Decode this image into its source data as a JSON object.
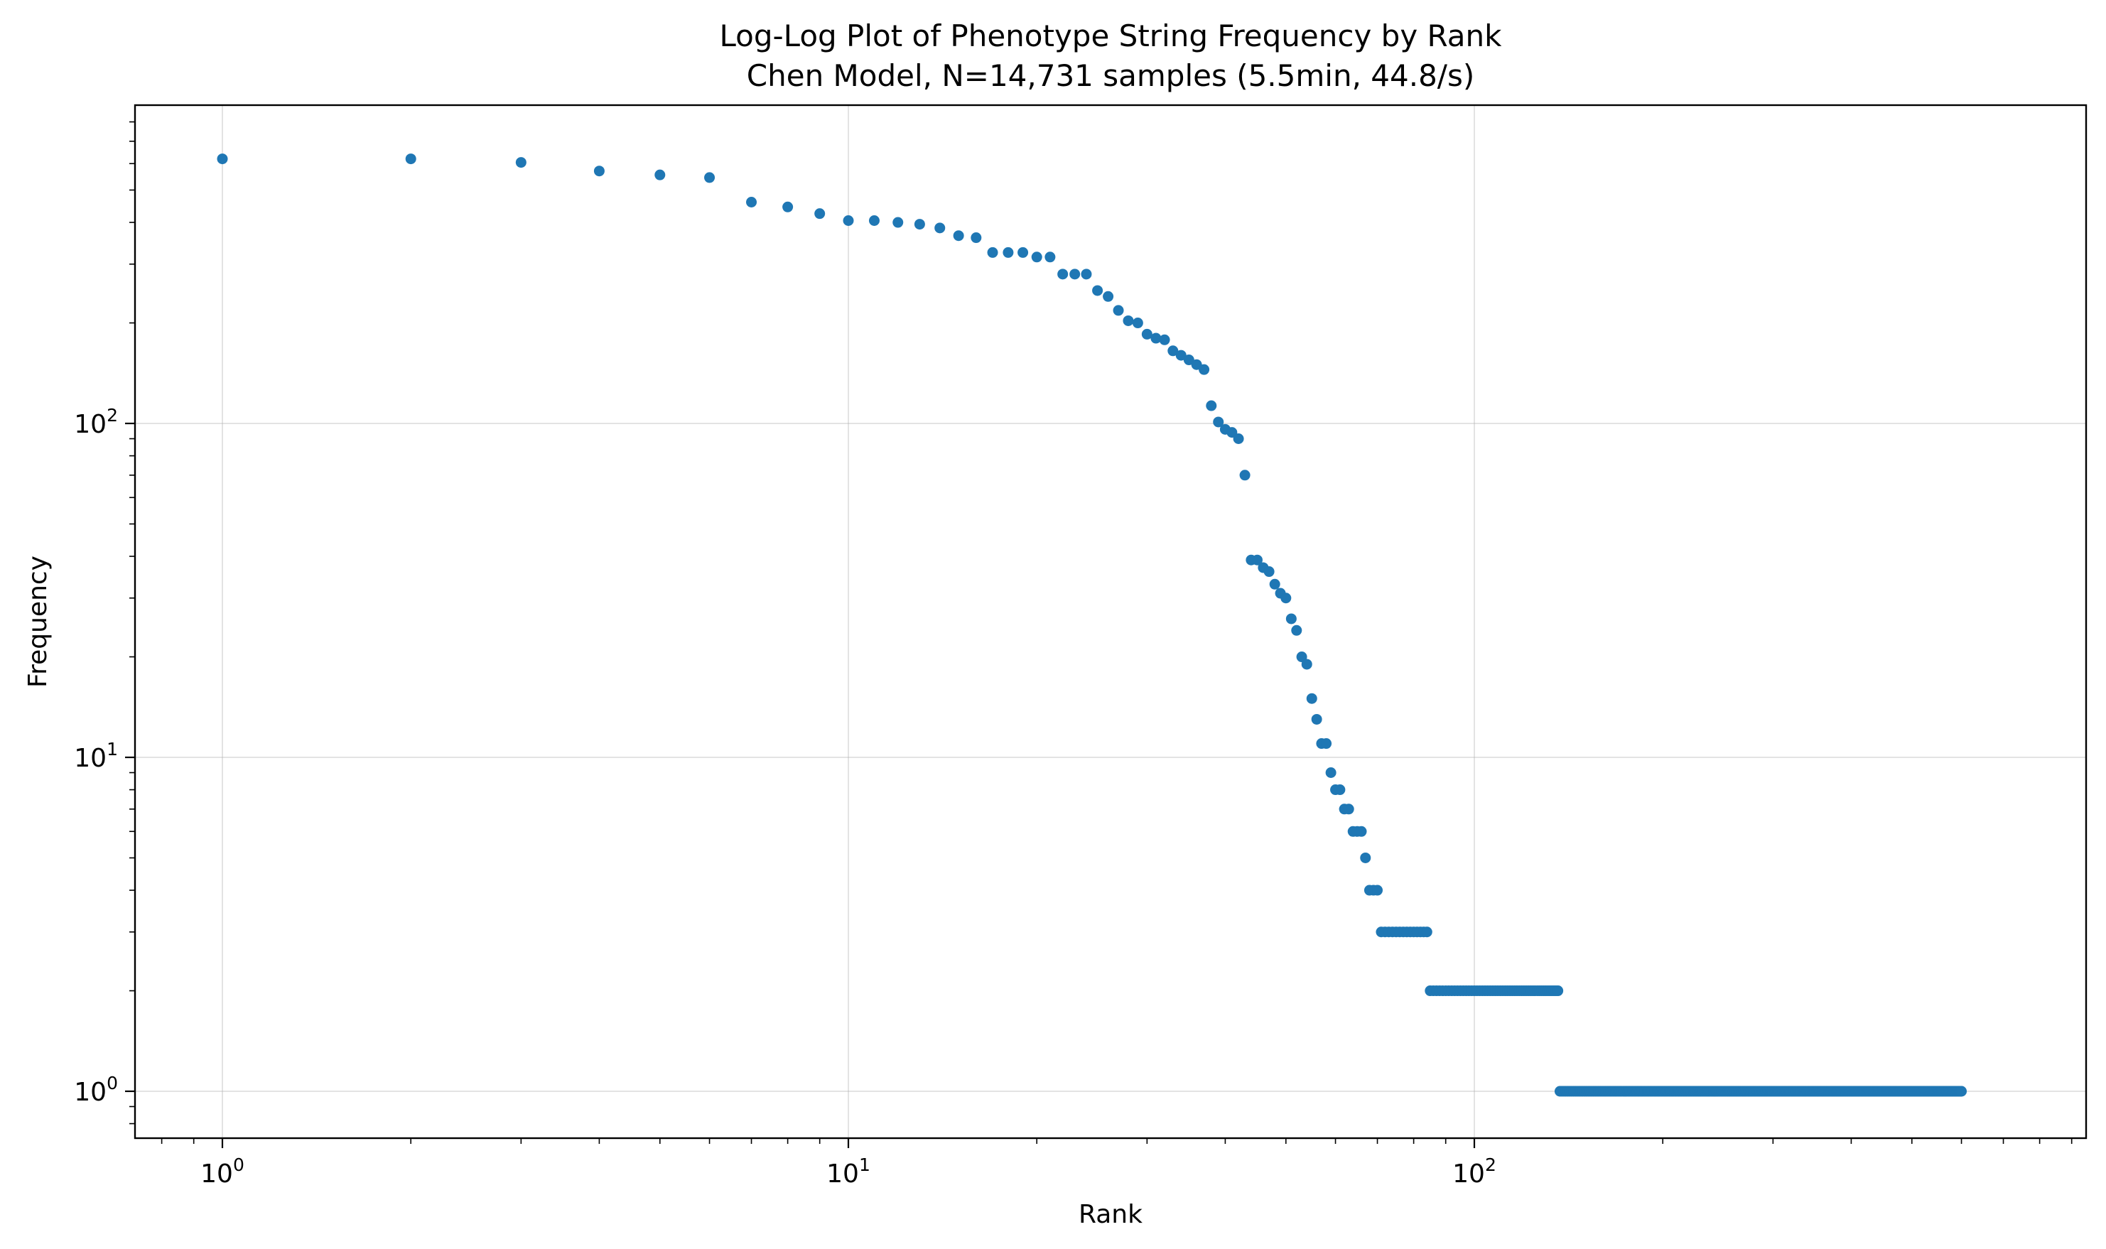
{
  "chart_data": {
    "type": "scatter",
    "title": "Log-Log Plot of Phenotype String Frequency by Rank",
    "subtitle": "Chen Model, N=14,731 samples (5.5min, 44.8/s)",
    "xlabel": "Rank",
    "ylabel": "Frequency",
    "xscale": "log",
    "yscale": "log",
    "xlim": [
      0.75,
      1000
    ],
    "ylim": [
      0.75,
      800
    ],
    "grid": true,
    "legend": "none",
    "color": "#1f77b4",
    "x_ticks": [
      {
        "base": "10",
        "exp": "0",
        "value": 1
      },
      {
        "base": "10",
        "exp": "1",
        "value": 10
      },
      {
        "base": "10",
        "exp": "2",
        "value": 100
      }
    ],
    "y_ticks": [
      {
        "base": "10",
        "exp": "0",
        "value": 1
      },
      {
        "base": "10",
        "exp": "1",
        "value": 10
      },
      {
        "base": "10",
        "exp": "2",
        "value": 100
      }
    ],
    "points": [
      [
        1,
        620
      ],
      [
        2,
        620
      ],
      [
        3,
        605
      ],
      [
        4,
        570
      ],
      [
        5,
        555
      ],
      [
        6,
        545
      ],
      [
        7,
        460
      ],
      [
        8,
        445
      ],
      [
        9,
        425
      ],
      [
        10,
        405
      ],
      [
        11,
        405
      ],
      [
        12,
        400
      ],
      [
        13,
        395
      ],
      [
        14,
        385
      ],
      [
        15,
        365
      ],
      [
        16,
        360
      ],
      [
        17,
        325
      ],
      [
        18,
        325
      ],
      [
        19,
        325
      ],
      [
        20,
        315
      ],
      [
        21,
        315
      ],
      [
        22,
        280
      ],
      [
        23,
        280
      ],
      [
        24,
        280
      ],
      [
        25,
        250
      ],
      [
        26,
        240
      ],
      [
        27,
        218
      ],
      [
        28,
        203
      ],
      [
        29,
        200
      ],
      [
        30,
        185
      ],
      [
        31,
        180
      ],
      [
        32,
        178
      ],
      [
        33,
        165
      ],
      [
        34,
        160
      ],
      [
        35,
        155
      ],
      [
        36,
        150
      ],
      [
        37,
        145
      ],
      [
        38,
        113
      ],
      [
        39,
        101
      ],
      [
        40,
        96
      ],
      [
        41,
        94
      ],
      [
        42,
        90
      ],
      [
        43,
        70
      ],
      [
        44,
        39
      ],
      [
        45,
        39
      ],
      [
        46,
        37
      ],
      [
        47,
        36
      ],
      [
        48,
        33
      ],
      [
        49,
        31
      ],
      [
        50,
        30
      ],
      [
        51,
        26
      ],
      [
        52,
        24
      ],
      [
        53,
        20
      ],
      [
        54,
        19
      ],
      [
        55,
        15
      ],
      [
        56,
        13
      ],
      [
        57,
        11
      ],
      [
        58,
        11
      ],
      [
        59,
        9
      ],
      [
        60,
        8
      ],
      [
        61,
        8
      ],
      [
        62,
        7
      ],
      [
        63,
        7
      ],
      [
        64,
        6
      ],
      [
        65,
        6
      ],
      [
        66,
        6
      ],
      [
        67,
        5
      ],
      [
        68,
        4
      ],
      [
        69,
        4
      ],
      [
        70,
        4
      ]
    ],
    "runs": [
      {
        "from": 71,
        "to": 84,
        "value": 3
      },
      {
        "from": 85,
        "to": 136,
        "value": 2
      },
      {
        "from": 137,
        "to": 600,
        "value": 1
      }
    ]
  }
}
